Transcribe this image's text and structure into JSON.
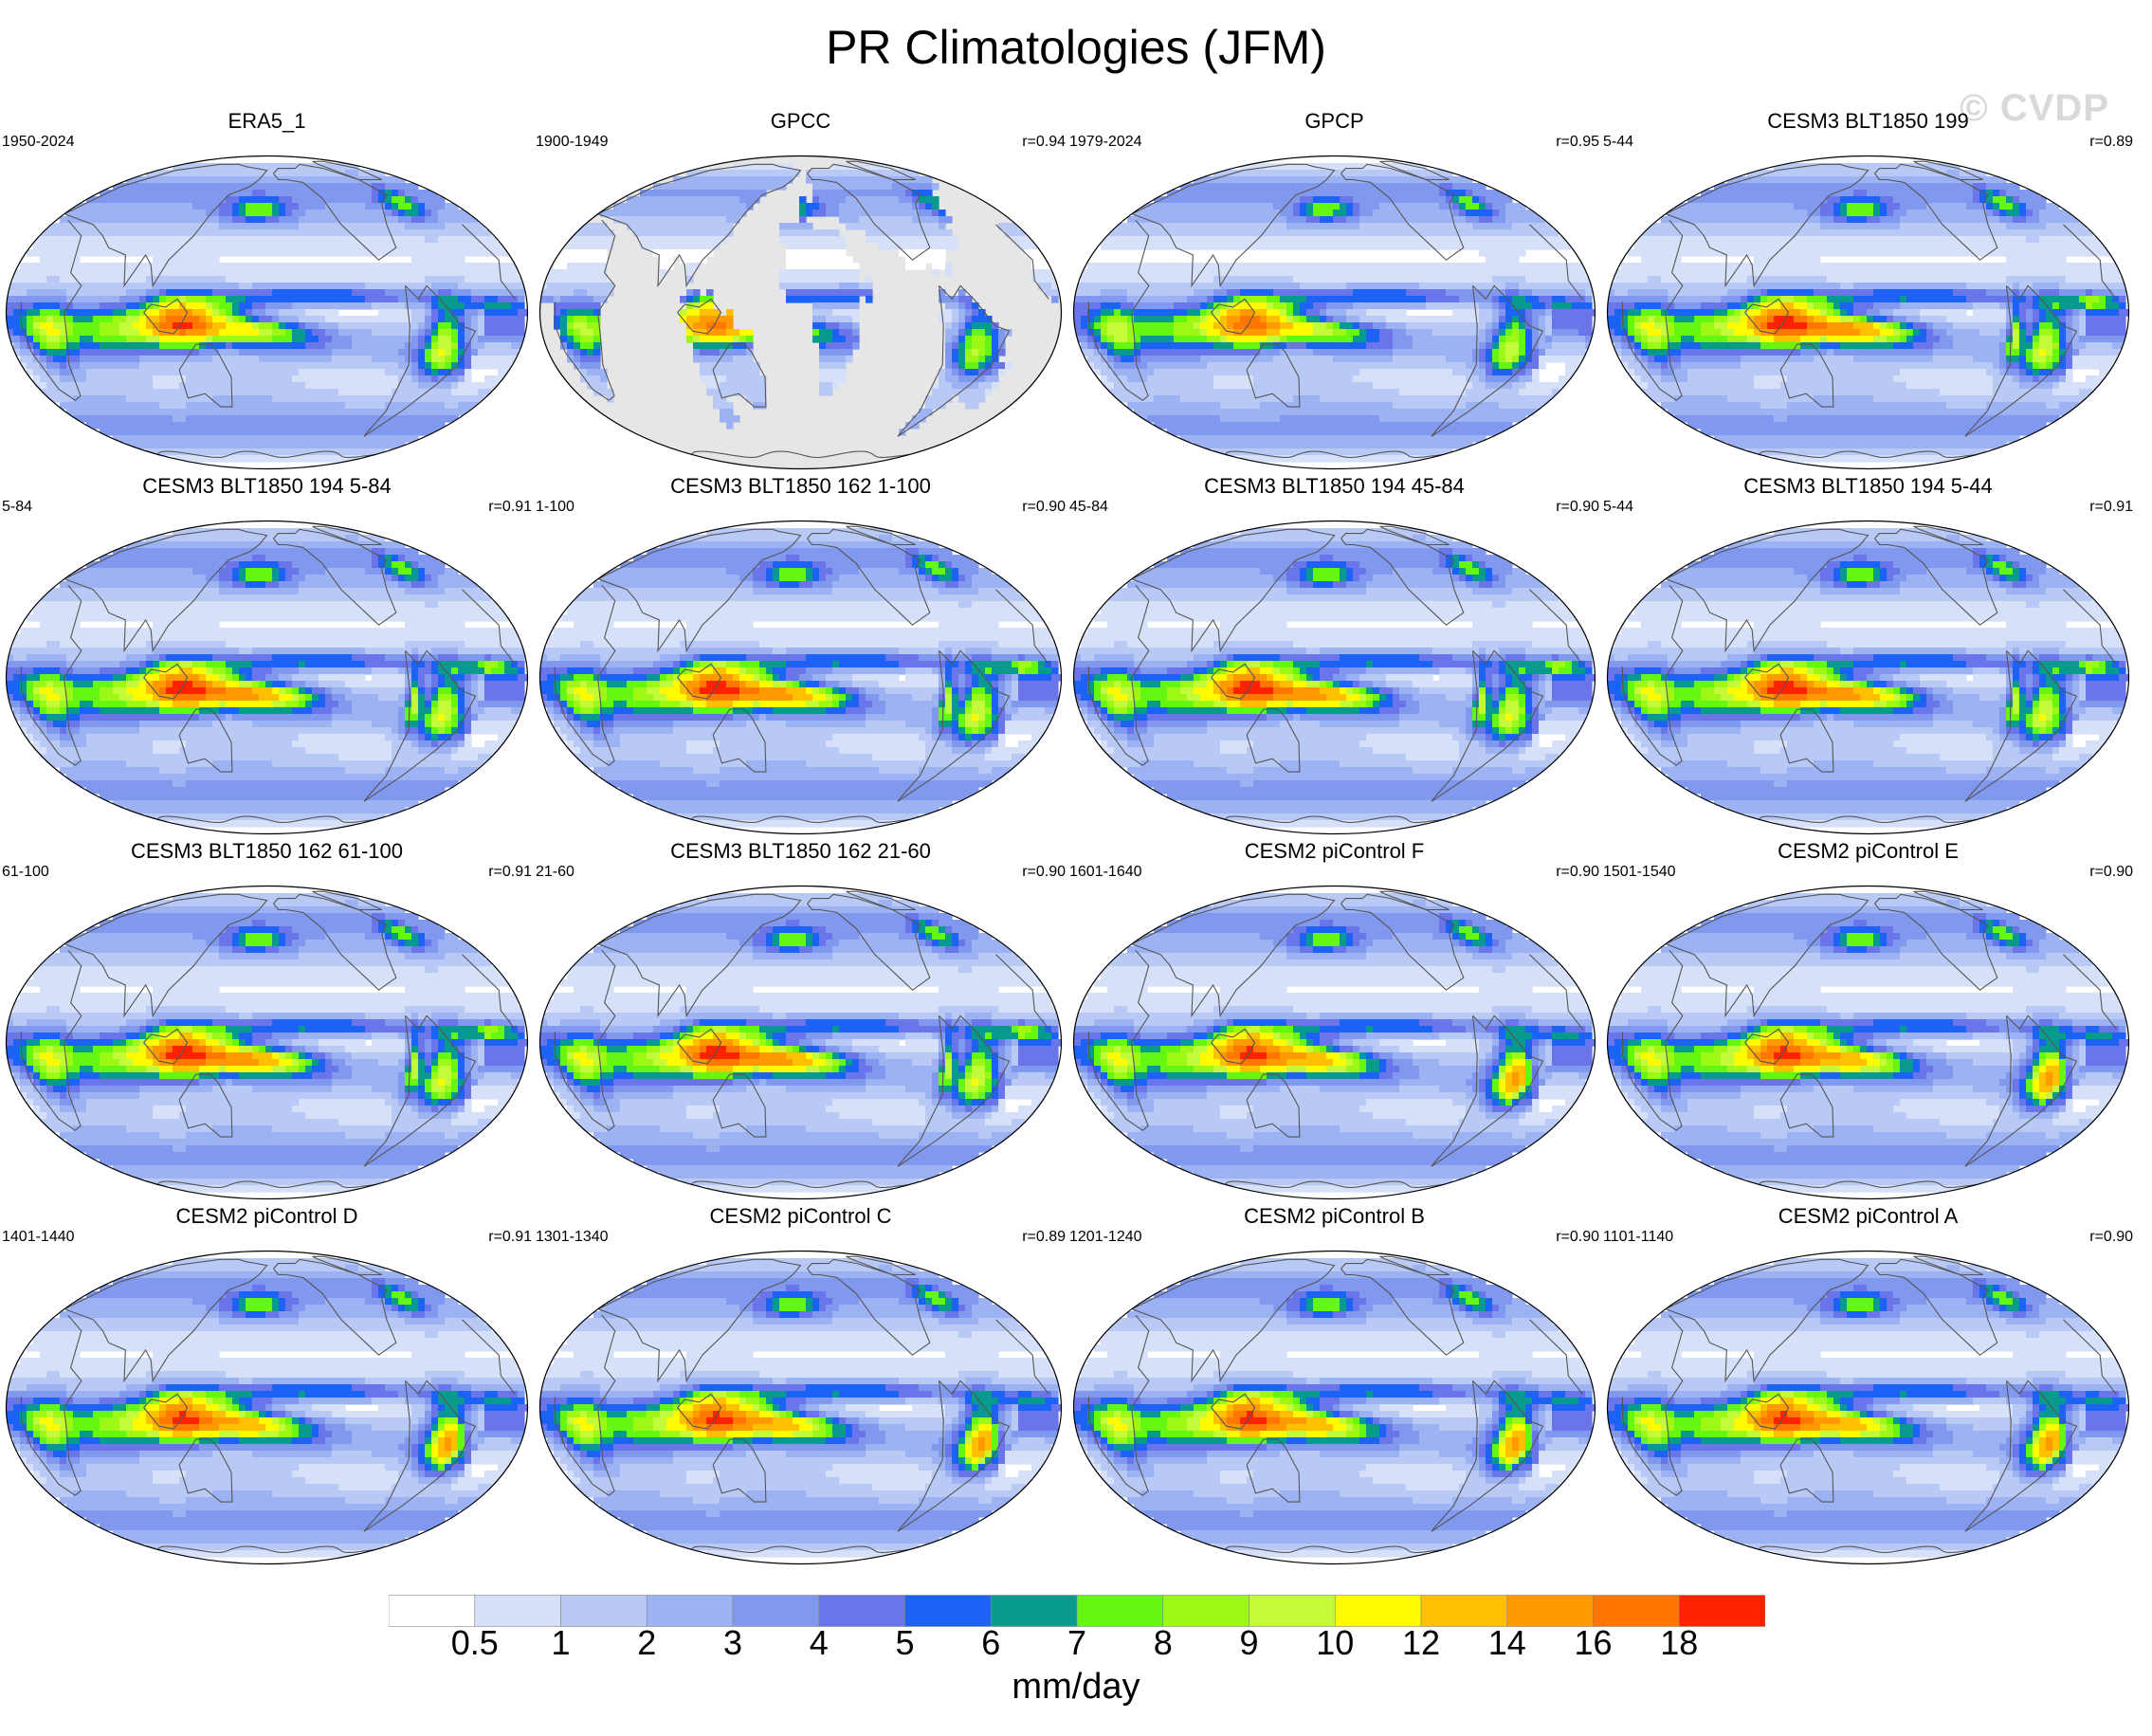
{
  "title": "PR Climatologies (JFM)",
  "watermark": "© CVDP",
  "panels": [
    {
      "title": "ERA5_1",
      "years": "1950-2024",
      "corr": "",
      "type": "reanalysis"
    },
    {
      "title": "GPCC",
      "years": "1900-1949",
      "corr": "r=0.94",
      "type": "land"
    },
    {
      "title": "GPCP",
      "years": "1979-2024",
      "corr": "r=0.95",
      "type": "obs"
    },
    {
      "title": "CESM3 BLT1850 199",
      "years": "5-44",
      "corr": "r=0.89",
      "type": "cesm3"
    },
    {
      "title": "CESM3 BLT1850 194 5-84",
      "years": "5-84",
      "corr": "r=0.91",
      "type": "cesm3"
    },
    {
      "title": "CESM3 BLT1850 162 1-100",
      "years": "1-100",
      "corr": "r=0.90",
      "type": "cesm3"
    },
    {
      "title": "CESM3 BLT1850 194 45-84",
      "years": "45-84",
      "corr": "r=0.90",
      "type": "cesm3"
    },
    {
      "title": "CESM3 BLT1850 194 5-44",
      "years": "5-44",
      "corr": "r=0.91",
      "type": "cesm3"
    },
    {
      "title": "CESM3 BLT1850 162 61-100",
      "years": "61-100",
      "corr": "r=0.91",
      "type": "cesm3"
    },
    {
      "title": "CESM3 BLT1850 162 21-60",
      "years": "21-60",
      "corr": "r=0.90",
      "type": "cesm3"
    },
    {
      "title": "CESM2 piControl F",
      "years": "1601-1640",
      "corr": "r=0.90",
      "type": "cesm2"
    },
    {
      "title": "CESM2 piControl E",
      "years": "1501-1540",
      "corr": "r=0.90",
      "type": "cesm2"
    },
    {
      "title": "CESM2 piControl D",
      "years": "1401-1440",
      "corr": "r=0.91",
      "type": "cesm2"
    },
    {
      "title": "CESM2 piControl C",
      "years": "1301-1340",
      "corr": "r=0.89",
      "type": "cesm2"
    },
    {
      "title": "CESM2 piControl B",
      "years": "1201-1240",
      "corr": "r=0.90",
      "type": "cesm2"
    },
    {
      "title": "CESM2 piControl A",
      "years": "1101-1140",
      "corr": "r=0.90",
      "type": "cesm2"
    }
  ],
  "colorbar": {
    "labels": [
      "0.5",
      "1",
      "2",
      "3",
      "4",
      "5",
      "6",
      "7",
      "8",
      "9",
      "10",
      "12",
      "14",
      "16",
      "18"
    ],
    "colors": [
      "#ffffff",
      "#d6e0f9",
      "#b9c9f6",
      "#9cb2f3",
      "#8099ee",
      "#6b75ea",
      "#1c62f4",
      "#08998f",
      "#65f712",
      "#9cf814",
      "#c3fb3b",
      "#fefb00",
      "#fec000",
      "#fe9a00",
      "#ff7700",
      "#ff2200"
    ],
    "units": "mm/day"
  },
  "land_fill": "#e6e6e6",
  "coast_color": "#555555"
}
